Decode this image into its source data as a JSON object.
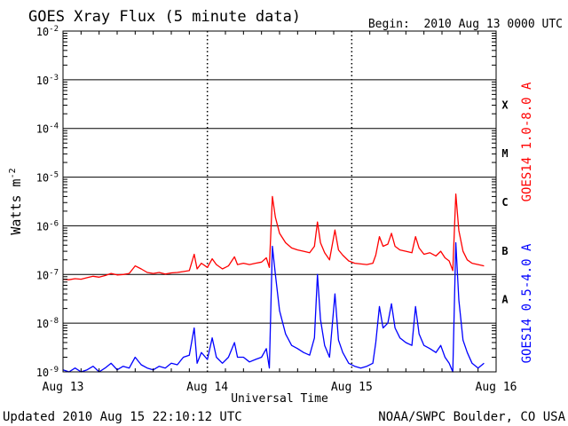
{
  "chart_data": {
    "type": "line",
    "title": "GOES Xray Flux (5 minute data)",
    "begin": "Begin:  2010 Aug 13 0000 UTC",
    "xlabel": "Universal Time",
    "ylabel": "Watts m",
    "ylabel_sup": "-2",
    "yscale": "log",
    "ylim": [
      1e-09,
      0.01
    ],
    "xlim": [
      0,
      72
    ],
    "x_unit": "hours since Aug 13 0000 UTC",
    "x_ticks": [
      {
        "x": 0,
        "label": "Aug 13"
      },
      {
        "x": 24,
        "label": "Aug 14"
      },
      {
        "x": 48,
        "label": "Aug 15"
      },
      {
        "x": 72,
        "label": "Aug 16"
      }
    ],
    "y_ticks": [
      {
        "exp": -9,
        "label": "10",
        "sup": "-9"
      },
      {
        "exp": -8,
        "label": "10",
        "sup": "-8"
      },
      {
        "exp": -7,
        "label": "10",
        "sup": "-7"
      },
      {
        "exp": -6,
        "label": "10",
        "sup": "-6"
      },
      {
        "exp": -5,
        "label": "10",
        "sup": "-5"
      },
      {
        "exp": -4,
        "label": "10",
        "sup": "-4"
      },
      {
        "exp": -3,
        "label": "10",
        "sup": "-3"
      },
      {
        "exp": -2,
        "label": "10",
        "sup": "-2"
      }
    ],
    "flare_classes": [
      {
        "label": "A",
        "exp": -8
      },
      {
        "label": "B",
        "exp": -7
      },
      {
        "label": "C",
        "exp": -6
      },
      {
        "label": "M",
        "exp": -5
      },
      {
        "label": "X",
        "exp": -4
      }
    ],
    "grid": true,
    "series": [
      {
        "name": "GOES14 1.0-8.0 A",
        "color": "#ff0000",
        "points": [
          [
            0,
            8e-08
          ],
          [
            1,
            7.8e-08
          ],
          [
            2,
            8.2e-08
          ],
          [
            3,
            8e-08
          ],
          [
            4,
            8.6e-08
          ],
          [
            5,
            9.2e-08
          ],
          [
            6,
            8.8e-08
          ],
          [
            7,
            9.5e-08
          ],
          [
            8,
            1.05e-07
          ],
          [
            9,
            9.8e-08
          ],
          [
            10,
            1e-07
          ],
          [
            11,
            1.05e-07
          ],
          [
            12,
            1.5e-07
          ],
          [
            13,
            1.3e-07
          ],
          [
            14,
            1.1e-07
          ],
          [
            15,
            1.05e-07
          ],
          [
            16,
            1.1e-07
          ],
          [
            17,
            1.02e-07
          ],
          [
            18,
            1.08e-07
          ],
          [
            19,
            1.1e-07
          ],
          [
            20,
            1.15e-07
          ],
          [
            21,
            1.2e-07
          ],
          [
            21.8,
            2.6e-07
          ],
          [
            22.3,
            1.3e-07
          ],
          [
            23,
            1.7e-07
          ],
          [
            24,
            1.4e-07
          ],
          [
            24.8,
            2.1e-07
          ],
          [
            25.5,
            1.6e-07
          ],
          [
            26.5,
            1.3e-07
          ],
          [
            27.5,
            1.5e-07
          ],
          [
            28.5,
            2.3e-07
          ],
          [
            29,
            1.6e-07
          ],
          [
            30,
            1.7e-07
          ],
          [
            31,
            1.6e-07
          ],
          [
            32,
            1.7e-07
          ],
          [
            33,
            1.8e-07
          ],
          [
            33.8,
            2.2e-07
          ],
          [
            34.3,
            1.4e-07
          ],
          [
            34.8,
            4e-06
          ],
          [
            35.3,
            1.5e-06
          ],
          [
            36,
            7e-07
          ],
          [
            37,
            4.5e-07
          ],
          [
            38,
            3.5e-07
          ],
          [
            39,
            3.2e-07
          ],
          [
            40,
            3e-07
          ],
          [
            41,
            2.8e-07
          ],
          [
            41.8,
            3.8e-07
          ],
          [
            42.3,
            1.2e-06
          ],
          [
            42.8,
            4.5e-07
          ],
          [
            43.5,
            2.8e-07
          ],
          [
            44.3,
            2e-07
          ],
          [
            45.2,
            8.2e-07
          ],
          [
            45.8,
            3.2e-07
          ],
          [
            46.5,
            2.5e-07
          ],
          [
            47.5,
            1.9e-07
          ],
          [
            48.5,
            1.7e-07
          ],
          [
            49.5,
            1.65e-07
          ],
          [
            50.5,
            1.6e-07
          ],
          [
            51.5,
            1.7e-07
          ],
          [
            52,
            2.5e-07
          ],
          [
            52.6,
            6e-07
          ],
          [
            53.2,
            3.8e-07
          ],
          [
            54,
            4.2e-07
          ],
          [
            54.6,
            7e-07
          ],
          [
            55.2,
            3.8e-07
          ],
          [
            56,
            3.2e-07
          ],
          [
            57,
            3e-07
          ],
          [
            58,
            2.8e-07
          ],
          [
            58.6,
            6e-07
          ],
          [
            59.2,
            3.5e-07
          ],
          [
            60,
            2.6e-07
          ],
          [
            61,
            2.8e-07
          ],
          [
            62,
            2.4e-07
          ],
          [
            62.8,
            3e-07
          ],
          [
            63.5,
            2.2e-07
          ],
          [
            64.2,
            1.9e-07
          ],
          [
            64.8,
            1.2e-07
          ],
          [
            65.3,
            4.5e-06
          ],
          [
            65.8,
            8e-07
          ],
          [
            66.5,
            3e-07
          ],
          [
            67.2,
            2e-07
          ],
          [
            68,
            1.7e-07
          ],
          [
            69,
            1.6e-07
          ],
          [
            70,
            1.5e-07
          ]
        ]
      },
      {
        "name": "GOES14 0.5-4.0 A",
        "color": "#0000ff",
        "points": [
          [
            0,
            1.1e-09
          ],
          [
            1,
            1e-09
          ],
          [
            2,
            1.2e-09
          ],
          [
            3,
            1e-09
          ],
          [
            4,
            1.1e-09
          ],
          [
            5,
            1.3e-09
          ],
          [
            6,
            1e-09
          ],
          [
            7,
            1.2e-09
          ],
          [
            8,
            1.5e-09
          ],
          [
            9,
            1.1e-09
          ],
          [
            10,
            1.3e-09
          ],
          [
            11,
            1.2e-09
          ],
          [
            12,
            2e-09
          ],
          [
            13,
            1.4e-09
          ],
          [
            14,
            1.2e-09
          ],
          [
            15,
            1.1e-09
          ],
          [
            16,
            1.3e-09
          ],
          [
            17,
            1.2e-09
          ],
          [
            18,
            1.5e-09
          ],
          [
            19,
            1.4e-09
          ],
          [
            20,
            2e-09
          ],
          [
            21,
            2.2e-09
          ],
          [
            21.8,
            8e-09
          ],
          [
            22.3,
            1.5e-09
          ],
          [
            23,
            2.5e-09
          ],
          [
            24,
            1.8e-09
          ],
          [
            24.8,
            5e-09
          ],
          [
            25.5,
            2e-09
          ],
          [
            26.5,
            1.5e-09
          ],
          [
            27.5,
            2e-09
          ],
          [
            28.5,
            4e-09
          ],
          [
            29,
            2e-09
          ],
          [
            30,
            2e-09
          ],
          [
            31,
            1.6e-09
          ],
          [
            32,
            1.8e-09
          ],
          [
            33,
            2e-09
          ],
          [
            33.8,
            3e-09
          ],
          [
            34.3,
            1.2e-09
          ],
          [
            34.8,
            3.8e-07
          ],
          [
            35.3,
            1e-07
          ],
          [
            36,
            1.8e-08
          ],
          [
            37,
            6e-09
          ],
          [
            38,
            3.5e-09
          ],
          [
            39,
            3e-09
          ],
          [
            40,
            2.5e-09
          ],
          [
            41,
            2.2e-09
          ],
          [
            41.8,
            5e-09
          ],
          [
            42.3,
            1e-07
          ],
          [
            42.8,
            1.2e-08
          ],
          [
            43.5,
            3.5e-09
          ],
          [
            44.3,
            2e-09
          ],
          [
            45.2,
            4e-08
          ],
          [
            45.8,
            4.5e-09
          ],
          [
            46.5,
            2.5e-09
          ],
          [
            47.5,
            1.5e-09
          ],
          [
            48.5,
            1.3e-09
          ],
          [
            49.5,
            1.2e-09
          ],
          [
            50.5,
            1.3e-09
          ],
          [
            51.5,
            1.5e-09
          ],
          [
            52,
            4e-09
          ],
          [
            52.6,
            2.2e-08
          ],
          [
            53.2,
            8e-09
          ],
          [
            54,
            1e-08
          ],
          [
            54.6,
            2.5e-08
          ],
          [
            55.2,
            8e-09
          ],
          [
            56,
            5e-09
          ],
          [
            57,
            4e-09
          ],
          [
            58,
            3.5e-09
          ],
          [
            58.6,
            2.2e-08
          ],
          [
            59.2,
            6e-09
          ],
          [
            60,
            3.5e-09
          ],
          [
            61,
            3e-09
          ],
          [
            62,
            2.5e-09
          ],
          [
            62.8,
            3.5e-09
          ],
          [
            63.5,
            2e-09
          ],
          [
            64.2,
            1.5e-09
          ],
          [
            64.8,
            1e-09
          ],
          [
            65.3,
            4.5e-07
          ],
          [
            65.8,
            3e-08
          ],
          [
            66.5,
            4.5e-09
          ],
          [
            67.2,
            2.5e-09
          ],
          [
            68,
            1.5e-09
          ],
          [
            69,
            1.2e-09
          ],
          [
            70,
            1.5e-09
          ]
        ]
      }
    ],
    "updated": "Updated 2010 Aug 15 22:10:12 UTC",
    "credit": "NOAA/SWPC Boulder, CO USA"
  }
}
